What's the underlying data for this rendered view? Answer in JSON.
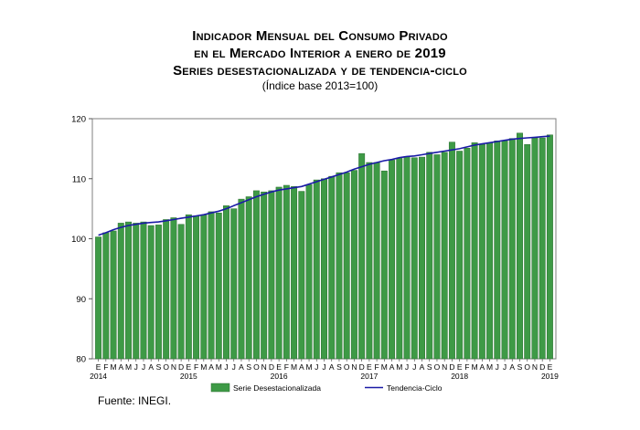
{
  "title_lines": [
    "Indicador Mensual del Consumo Privado",
    "en el Mercado Interior a enero de 2019",
    "Series desestacionalizada y de tendencia-ciclo"
  ],
  "subtitle": "(Índice base 2013=100)",
  "source": "Fuente: INEGI.",
  "chart_data": {
    "type": "bar",
    "title": "Indicador Mensual del Consumo Privado en el Mercado Interior a enero de 2019",
    "subtitle": "Series desestacionalizada y de tendencia-ciclo (Índice base 2013=100)",
    "ylim": [
      80,
      120
    ],
    "yticks": [
      80,
      90,
      100,
      110,
      120
    ],
    "grid": false,
    "legend_position": "bottom",
    "colors": {
      "bar": "#3e9a46",
      "bar_edge": "#2a6e30",
      "trend": "#1a1aa6",
      "frame": "#7f7f7f"
    },
    "month_labels": [
      "E",
      "F",
      "M",
      "A",
      "M",
      "J",
      "J",
      "A",
      "S",
      "O",
      "N",
      "D"
    ],
    "year_labels": [
      {
        "label": "2014",
        "index": 0
      },
      {
        "label": "2015",
        "index": 12
      },
      {
        "label": "2016",
        "index": 24
      },
      {
        "label": "2017",
        "index": 36
      },
      {
        "label": "2018",
        "index": 48
      },
      {
        "label": "2019",
        "index": 60
      }
    ],
    "series": [
      {
        "name": "Serie Desestacionalizada",
        "kind": "bar",
        "values": [
          100.3,
          101.0,
          101.3,
          102.6,
          102.8,
          102.6,
          102.8,
          102.2,
          102.3,
          103.2,
          103.5,
          102.4,
          104.0,
          103.8,
          104.0,
          104.5,
          104.3,
          105.5,
          105.0,
          106.6,
          107.0,
          108.0,
          107.8,
          108.0,
          108.6,
          108.9,
          108.7,
          107.9,
          109.0,
          109.8,
          110.0,
          110.4,
          111.0,
          111.0,
          111.4,
          114.2,
          112.7,
          112.7,
          111.3,
          113.1,
          113.4,
          113.7,
          113.5,
          113.6,
          114.4,
          114.0,
          114.4,
          116.1,
          114.6,
          115.1,
          116.0,
          115.7,
          116.0,
          116.3,
          116.3,
          116.7,
          117.6,
          115.7,
          116.8,
          116.8,
          117.3
        ]
      },
      {
        "name": "Tendencia-Ciclo",
        "kind": "line",
        "values": [
          100.6,
          101.0,
          101.5,
          101.9,
          102.2,
          102.4,
          102.6,
          102.7,
          102.8,
          103.0,
          103.2,
          103.4,
          103.6,
          103.8,
          104.0,
          104.3,
          104.6,
          105.0,
          105.5,
          106.0,
          106.5,
          107.0,
          107.4,
          107.8,
          108.1,
          108.3,
          108.5,
          108.7,
          109.1,
          109.5,
          109.9,
          110.3,
          110.7,
          111.1,
          111.6,
          112.0,
          112.4,
          112.7,
          113.0,
          113.2,
          113.5,
          113.7,
          113.8,
          114.0,
          114.2,
          114.4,
          114.6,
          114.8,
          115.0,
          115.3,
          115.6,
          115.8,
          116.0,
          116.2,
          116.4,
          116.6,
          116.7,
          116.8,
          116.9,
          117.0,
          117.1
        ]
      }
    ]
  }
}
